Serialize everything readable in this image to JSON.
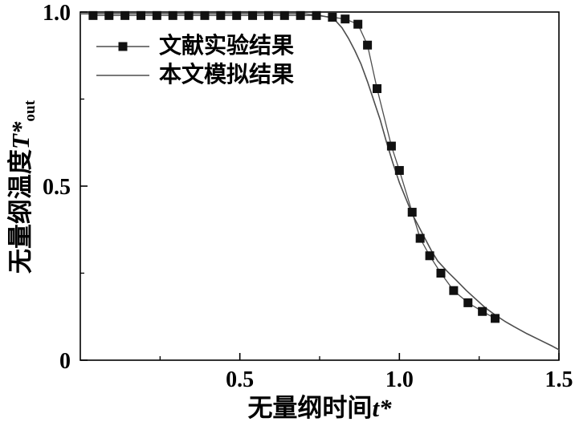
{
  "figure": {
    "background": "#ffffff"
  },
  "chart_data": {
    "type": "line",
    "title": "",
    "xlabel": "无量纲时间t*",
    "xlabel_cn": "无量纲时间",
    "xlabel_sym": "t*",
    "ylabel": "无量纲温度T*out",
    "ylabel_cn": "无量纲温度",
    "ylabel_sym": "T*",
    "ylabel_sub": "out",
    "xlim": [
      0,
      1.5
    ],
    "ylim": [
      0,
      1.0
    ],
    "x_ticks": [
      {
        "v": 0.5,
        "label": "0.5"
      },
      {
        "v": 1.0,
        "label": "1.0"
      },
      {
        "v": 1.5,
        "label": "1.5"
      }
    ],
    "y_ticks": [
      {
        "v": 0,
        "label": "0"
      },
      {
        "v": 0.5,
        "label": "0.5"
      },
      {
        "v": 1.0,
        "label": "1.0"
      }
    ],
    "x_minor_ticks": [
      0.25,
      0.75,
      1.25
    ],
    "y_minor_ticks": [
      0.25,
      0.75
    ],
    "grid": false,
    "legend_position": "upper-left-inside",
    "colors": {
      "marker": "#111111",
      "line": "#4d4d4d",
      "axis": "#000000",
      "text": "#000000"
    },
    "series": [
      {
        "name": "文献实验结果",
        "type": "line+marker",
        "marker": "filled-square",
        "x": [
          0.04,
          0.09,
          0.14,
          0.19,
          0.24,
          0.29,
          0.34,
          0.39,
          0.44,
          0.49,
          0.54,
          0.59,
          0.64,
          0.69,
          0.74,
          0.79,
          0.83,
          0.87,
          0.9,
          0.93,
          0.975,
          1.0,
          1.04,
          1.065,
          1.095,
          1.13,
          1.17,
          1.215,
          1.26,
          1.3
        ],
        "y": [
          0.99,
          0.99,
          0.99,
          0.99,
          0.99,
          0.99,
          0.99,
          0.99,
          0.99,
          0.99,
          0.99,
          0.99,
          0.99,
          0.99,
          0.99,
          0.985,
          0.98,
          0.965,
          0.905,
          0.78,
          0.615,
          0.545,
          0.425,
          0.35,
          0.3,
          0.25,
          0.2,
          0.165,
          0.14,
          0.12
        ]
      },
      {
        "name": "本文模拟结果",
        "type": "line",
        "marker": "none",
        "x": [
          0.0,
          0.1,
          0.2,
          0.3,
          0.4,
          0.5,
          0.6,
          0.7,
          0.75,
          0.78,
          0.8,
          0.82,
          0.84,
          0.86,
          0.88,
          0.9,
          0.92,
          0.94,
          0.96,
          0.98,
          1.0,
          1.02,
          1.04,
          1.06,
          1.08,
          1.1,
          1.12,
          1.15,
          1.18,
          1.21,
          1.24,
          1.27,
          1.3,
          1.33,
          1.36,
          1.4,
          1.44,
          1.48,
          1.5
        ],
        "y": [
          0.995,
          0.995,
          0.995,
          0.995,
          0.995,
          0.995,
          0.995,
          0.995,
          0.99,
          0.985,
          0.975,
          0.955,
          0.925,
          0.89,
          0.85,
          0.8,
          0.745,
          0.69,
          0.625,
          0.565,
          0.51,
          0.465,
          0.42,
          0.385,
          0.35,
          0.315,
          0.285,
          0.255,
          0.228,
          0.2,
          0.175,
          0.15,
          0.13,
          0.112,
          0.096,
          0.076,
          0.058,
          0.04,
          0.03
        ]
      }
    ]
  }
}
